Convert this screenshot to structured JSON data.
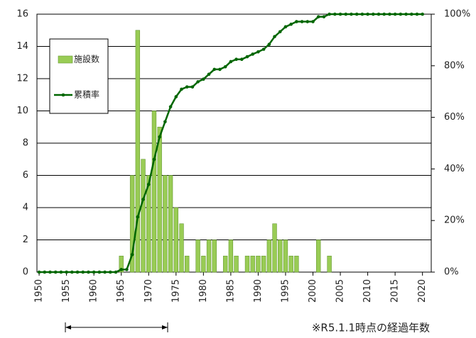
{
  "chart_data": {
    "type": "bar",
    "x": [
      1950,
      1951,
      1952,
      1953,
      1954,
      1955,
      1956,
      1957,
      1958,
      1959,
      1960,
      1961,
      1962,
      1963,
      1964,
      1965,
      1966,
      1967,
      1968,
      1969,
      1970,
      1971,
      1972,
      1973,
      1974,
      1975,
      1976,
      1977,
      1978,
      1979,
      1980,
      1981,
      1982,
      1983,
      1984,
      1985,
      1986,
      1987,
      1988,
      1989,
      1990,
      1991,
      1992,
      1993,
      1994,
      1995,
      1996,
      1997,
      1998,
      1999,
      2000,
      2001,
      2002,
      2003,
      2004,
      2005,
      2006,
      2007,
      2008,
      2009,
      2010,
      2011,
      2012,
      2013,
      2014,
      2015,
      2016,
      2017,
      2018,
      2019,
      2020
    ],
    "series": [
      {
        "name": "施設数",
        "type": "bar",
        "color": "#99cc55",
        "values": [
          0,
          0,
          0,
          0,
          0,
          0,
          0,
          0,
          0,
          0,
          0,
          0,
          0,
          0,
          0,
          1,
          0,
          6,
          15,
          7,
          6,
          10,
          9,
          6,
          6,
          4,
          3,
          1,
          0,
          2,
          1,
          2,
          2,
          0,
          1,
          2,
          1,
          0,
          1,
          1,
          1,
          1,
          2,
          3,
          2,
          2,
          1,
          1,
          0,
          0,
          0,
          2,
          0,
          1,
          0,
          0,
          0,
          0,
          0,
          0,
          0,
          0,
          0,
          0,
          0,
          0,
          0,
          0,
          0,
          0,
          0
        ]
      },
      {
        "name": "累積率",
        "type": "line",
        "axis": "y2",
        "color": "#006600",
        "values": [
          0,
          0,
          0,
          0,
          0,
          0,
          0,
          0,
          0,
          0,
          0,
          0,
          0,
          0,
          0,
          1.0,
          1.0,
          6.8,
          21.4,
          28.2,
          34.0,
          43.7,
          52.4,
          58.3,
          64.1,
          68.0,
          70.9,
          71.8,
          71.8,
          73.8,
          74.8,
          76.7,
          78.6,
          78.6,
          79.6,
          81.6,
          82.5,
          82.5,
          83.5,
          84.5,
          85.4,
          86.4,
          88.3,
          91.3,
          93.2,
          95.1,
          96.1,
          97.1,
          97.1,
          97.1,
          97.1,
          99.0,
          99.0,
          100,
          100,
          100,
          100,
          100,
          100,
          100,
          100,
          100,
          100,
          100,
          100,
          100,
          100,
          100,
          100,
          100,
          100
        ]
      }
    ],
    "xlim": [
      1949.6,
      2021.6
    ],
    "xticks": [
      1950,
      1955,
      1960,
      1965,
      1970,
      1975,
      1980,
      1985,
      1990,
      1995,
      2000,
      2005,
      2010,
      2015,
      2020
    ],
    "ylim": [
      0,
      16
    ],
    "yticks": [
      0,
      2,
      4,
      6,
      8,
      10,
      12,
      14,
      16
    ],
    "y2lim": [
      0,
      100
    ],
    "y2ticks": [
      {
        "value": 0,
        "label": "0%"
      },
      {
        "value": 20,
        "label": "20%"
      },
      {
        "value": 40,
        "label": "40%"
      },
      {
        "value": 60,
        "label": "60%"
      },
      {
        "value": 80,
        "label": "80%"
      },
      {
        "value": 100,
        "label": "100%"
      }
    ],
    "grid": true,
    "annotation": "※R5.1.1時点の経過年数"
  }
}
